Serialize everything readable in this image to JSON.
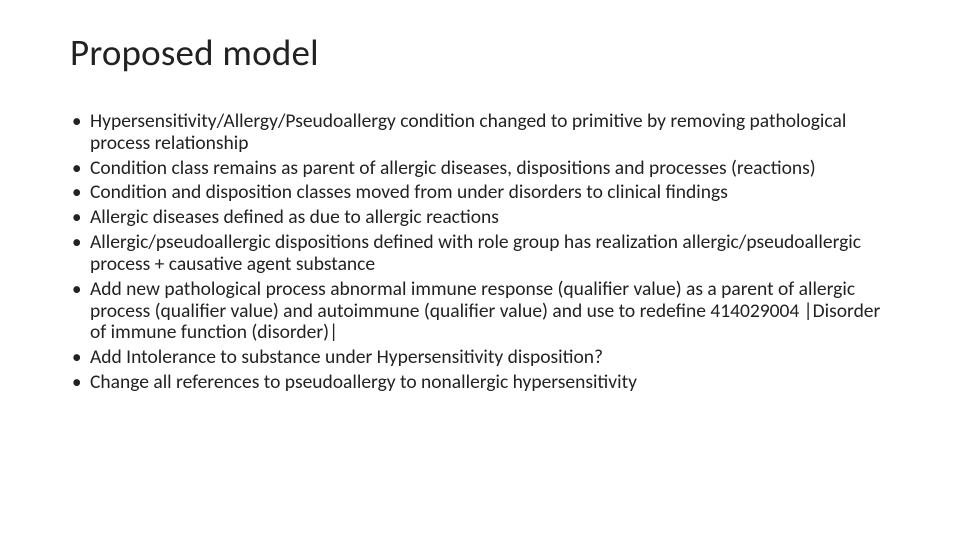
{
  "slide": {
    "title": "Proposed model",
    "title_fontsize": 37,
    "title_color": "#222222",
    "body_fontsize": 19.5,
    "body_color": "#222222",
    "background_color": "#ffffff",
    "bullets": [
      "Hypersensitivity/Allergy/Pseudoallergy condition changed to primitive by removing pathological process relationship",
      "Condition class remains as parent of allergic diseases, dispositions and processes (reactions)",
      "Condition and disposition classes moved from under disorders to clinical findings",
      "Allergic diseases defined as due to allergic reactions",
      "Allergic/pseudoallergic dispositions defined with role group has realization allergic/pseudoallergic process + causative agent substance",
      "Add new pathological process abnormal immune response (qualifier value) as a parent of allergic process (qualifier value) and autoimmune (qualifier value) and use to redefine 414029004 |Disorder of immune function (disorder)|",
      "Add Intolerance to substance under Hypersensitivity disposition?",
      "Change all references to pseudoallergy to nonallergic hypersensitivity"
    ]
  }
}
